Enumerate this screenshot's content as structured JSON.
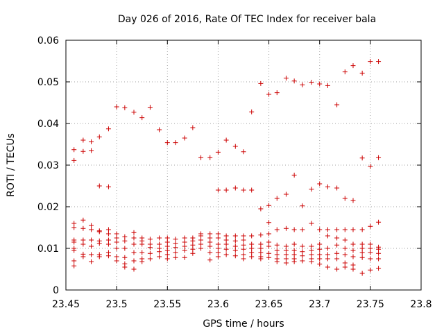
{
  "chart_data": {
    "type": "scatter",
    "title": "Day 026 of 2016, Rate Of TEC Index for receiver bala",
    "xlabel": "GPS time / hours",
    "ylabel": "ROTI / TECUs",
    "xlim": [
      23.45,
      23.8
    ],
    "ylim": [
      0,
      0.06
    ],
    "x_ticks": [
      "23.45",
      "23.5",
      "23.55",
      "23.6",
      "23.65",
      "23.7",
      "23.75",
      "23.8"
    ],
    "y_ticks": [
      "0",
      "0.01",
      "0.02",
      "0.03",
      "0.04",
      "0.05",
      "0.06"
    ],
    "grid": true,
    "marker": "+",
    "color": "#cc0000",
    "points": [
      [
        23.458,
        0.0337
      ],
      [
        23.458,
        0.0311
      ],
      [
        23.467,
        0.036
      ],
      [
        23.467,
        0.0333
      ],
      [
        23.475,
        0.0356
      ],
      [
        23.475,
        0.0335
      ],
      [
        23.483,
        0.0368
      ],
      [
        23.483,
        0.025
      ],
      [
        23.492,
        0.0387
      ],
      [
        23.492,
        0.0248
      ],
      [
        23.5,
        0.044
      ],
      [
        23.508,
        0.0438
      ],
      [
        23.517,
        0.0427
      ],
      [
        23.525,
        0.0414
      ],
      [
        23.533,
        0.0439
      ],
      [
        23.542,
        0.0385
      ],
      [
        23.55,
        0.0354
      ],
      [
        23.558,
        0.0354
      ],
      [
        23.567,
        0.0365
      ],
      [
        23.575,
        0.039
      ],
      [
        23.583,
        0.0318
      ],
      [
        23.592,
        0.0318
      ],
      [
        23.6,
        0.0331
      ],
      [
        23.6,
        0.024
      ],
      [
        23.608,
        0.036
      ],
      [
        23.608,
        0.024
      ],
      [
        23.617,
        0.0345
      ],
      [
        23.617,
        0.0245
      ],
      [
        23.625,
        0.0332
      ],
      [
        23.625,
        0.024
      ],
      [
        23.633,
        0.0428
      ],
      [
        23.633,
        0.024
      ],
      [
        23.642,
        0.0496
      ],
      [
        23.642,
        0.0195
      ],
      [
        23.65,
        0.047
      ],
      [
        23.65,
        0.0203
      ],
      [
        23.658,
        0.0474
      ],
      [
        23.658,
        0.022
      ],
      [
        23.667,
        0.0509
      ],
      [
        23.667,
        0.023
      ],
      [
        23.675,
        0.0502
      ],
      [
        23.675,
        0.0276
      ],
      [
        23.683,
        0.0493
      ],
      [
        23.683,
        0.0202
      ],
      [
        23.692,
        0.0499
      ],
      [
        23.692,
        0.0242
      ],
      [
        23.7,
        0.0495
      ],
      [
        23.7,
        0.0255
      ],
      [
        23.708,
        0.0491
      ],
      [
        23.708,
        0.0248
      ],
      [
        23.717,
        0.0445
      ],
      [
        23.717,
        0.0245
      ],
      [
        23.725,
        0.0524
      ],
      [
        23.725,
        0.022
      ],
      [
        23.733,
        0.0539
      ],
      [
        23.733,
        0.0215
      ],
      [
        23.742,
        0.0521
      ],
      [
        23.742,
        0.0317
      ],
      [
        23.75,
        0.0549
      ],
      [
        23.75,
        0.0297
      ],
      [
        23.758,
        0.0549
      ],
      [
        23.758,
        0.0318
      ],
      [
        23.458,
        0.016
      ],
      [
        23.458,
        0.015
      ],
      [
        23.458,
        0.012
      ],
      [
        23.458,
        0.0115
      ],
      [
        23.458,
        0.01
      ],
      [
        23.458,
        0.0095
      ],
      [
        23.458,
        0.007
      ],
      [
        23.458,
        0.0058
      ],
      [
        23.467,
        0.0168
      ],
      [
        23.467,
        0.0148
      ],
      [
        23.467,
        0.012
      ],
      [
        23.467,
        0.011
      ],
      [
        23.467,
        0.0086
      ],
      [
        23.467,
        0.008
      ],
      [
        23.475,
        0.0155
      ],
      [
        23.475,
        0.0145
      ],
      [
        23.475,
        0.012
      ],
      [
        23.475,
        0.0105
      ],
      [
        23.475,
        0.0085
      ],
      [
        23.475,
        0.0068
      ],
      [
        23.483,
        0.0142
      ],
      [
        23.483,
        0.014
      ],
      [
        23.483,
        0.0118
      ],
      [
        23.483,
        0.0112
      ],
      [
        23.483,
        0.0085
      ],
      [
        23.483,
        0.008
      ],
      [
        23.492,
        0.0145
      ],
      [
        23.492,
        0.0135
      ],
      [
        23.492,
        0.012
      ],
      [
        23.492,
        0.011
      ],
      [
        23.492,
        0.009
      ],
      [
        23.492,
        0.0082
      ],
      [
        23.5,
        0.0135
      ],
      [
        23.5,
        0.0125
      ],
      [
        23.5,
        0.0115
      ],
      [
        23.5,
        0.01
      ],
      [
        23.5,
        0.008
      ],
      [
        23.5,
        0.007
      ],
      [
        23.508,
        0.0128
      ],
      [
        23.508,
        0.0118
      ],
      [
        23.508,
        0.01
      ],
      [
        23.508,
        0.0078
      ],
      [
        23.508,
        0.0063
      ],
      [
        23.508,
        0.0055
      ],
      [
        23.517,
        0.0138
      ],
      [
        23.517,
        0.0125
      ],
      [
        23.517,
        0.011
      ],
      [
        23.517,
        0.009
      ],
      [
        23.517,
        0.007
      ],
      [
        23.517,
        0.005
      ],
      [
        23.525,
        0.0125
      ],
      [
        23.525,
        0.0118
      ],
      [
        23.525,
        0.011
      ],
      [
        23.525,
        0.009
      ],
      [
        23.525,
        0.0075
      ],
      [
        23.525,
        0.0068
      ],
      [
        23.533,
        0.0122
      ],
      [
        23.533,
        0.011
      ],
      [
        23.533,
        0.0102
      ],
      [
        23.533,
        0.0088
      ],
      [
        23.533,
        0.0075
      ],
      [
        23.542,
        0.0125
      ],
      [
        23.542,
        0.011
      ],
      [
        23.542,
        0.01
      ],
      [
        23.542,
        0.0092
      ],
      [
        23.542,
        0.008
      ],
      [
        23.55,
        0.0125
      ],
      [
        23.55,
        0.0115
      ],
      [
        23.55,
        0.0105
      ],
      [
        23.55,
        0.0095
      ],
      [
        23.55,
        0.0085
      ],
      [
        23.55,
        0.0075
      ],
      [
        23.558,
        0.0122
      ],
      [
        23.558,
        0.0112
      ],
      [
        23.558,
        0.0102
      ],
      [
        23.558,
        0.009
      ],
      [
        23.558,
        0.0078
      ],
      [
        23.567,
        0.0125
      ],
      [
        23.567,
        0.0115
      ],
      [
        23.567,
        0.0105
      ],
      [
        23.567,
        0.0095
      ],
      [
        23.567,
        0.0078
      ],
      [
        23.575,
        0.0125
      ],
      [
        23.575,
        0.0118
      ],
      [
        23.575,
        0.0108
      ],
      [
        23.575,
        0.0098
      ],
      [
        23.575,
        0.0088
      ],
      [
        23.583,
        0.0135
      ],
      [
        23.583,
        0.013
      ],
      [
        23.583,
        0.012
      ],
      [
        23.583,
        0.011
      ],
      [
        23.583,
        0.01
      ],
      [
        23.592,
        0.0135
      ],
      [
        23.592,
        0.0125
      ],
      [
        23.592,
        0.0115
      ],
      [
        23.592,
        0.0105
      ],
      [
        23.592,
        0.009
      ],
      [
        23.592,
        0.0072
      ],
      [
        23.6,
        0.0135
      ],
      [
        23.6,
        0.0125
      ],
      [
        23.6,
        0.011
      ],
      [
        23.6,
        0.01
      ],
      [
        23.6,
        0.009
      ],
      [
        23.6,
        0.008
      ],
      [
        23.608,
        0.013
      ],
      [
        23.608,
        0.012
      ],
      [
        23.608,
        0.011
      ],
      [
        23.608,
        0.0098
      ],
      [
        23.608,
        0.0085
      ],
      [
        23.617,
        0.013
      ],
      [
        23.617,
        0.0118
      ],
      [
        23.617,
        0.0105
      ],
      [
        23.617,
        0.0095
      ],
      [
        23.617,
        0.0082
      ],
      [
        23.625,
        0.013
      ],
      [
        23.625,
        0.012
      ],
      [
        23.625,
        0.0108
      ],
      [
        23.625,
        0.0098
      ],
      [
        23.625,
        0.0085
      ],
      [
        23.625,
        0.0075
      ],
      [
        23.633,
        0.013
      ],
      [
        23.633,
        0.011
      ],
      [
        23.633,
        0.01
      ],
      [
        23.633,
        0.009
      ],
      [
        23.633,
        0.008
      ],
      [
        23.642,
        0.0132
      ],
      [
        23.642,
        0.011
      ],
      [
        23.642,
        0.01
      ],
      [
        23.642,
        0.009
      ],
      [
        23.642,
        0.008
      ],
      [
        23.642,
        0.0075
      ],
      [
        23.65,
        0.0162
      ],
      [
        23.65,
        0.0135
      ],
      [
        23.65,
        0.0115
      ],
      [
        23.65,
        0.0105
      ],
      [
        23.65,
        0.0088
      ],
      [
        23.65,
        0.0078
      ],
      [
        23.658,
        0.0145
      ],
      [
        23.658,
        0.0108
      ],
      [
        23.658,
        0.0095
      ],
      [
        23.658,
        0.0085
      ],
      [
        23.658,
        0.0075
      ],
      [
        23.658,
        0.0068
      ],
      [
        23.667,
        0.0148
      ],
      [
        23.667,
        0.0105
      ],
      [
        23.667,
        0.0095
      ],
      [
        23.667,
        0.0085
      ],
      [
        23.667,
        0.0075
      ],
      [
        23.667,
        0.0065
      ],
      [
        23.675,
        0.0145
      ],
      [
        23.675,
        0.011
      ],
      [
        23.675,
        0.0095
      ],
      [
        23.675,
        0.0085
      ],
      [
        23.675,
        0.0075
      ],
      [
        23.675,
        0.0068
      ],
      [
        23.683,
        0.0145
      ],
      [
        23.683,
        0.0105
      ],
      [
        23.683,
        0.0092
      ],
      [
        23.683,
        0.0082
      ],
      [
        23.683,
        0.007
      ],
      [
        23.692,
        0.016
      ],
      [
        23.692,
        0.0105
      ],
      [
        23.692,
        0.0095
      ],
      [
        23.692,
        0.0085
      ],
      [
        23.692,
        0.0075
      ],
      [
        23.692,
        0.0068
      ],
      [
        23.7,
        0.0145
      ],
      [
        23.7,
        0.011
      ],
      [
        23.7,
        0.0098
      ],
      [
        23.7,
        0.0085
      ],
      [
        23.7,
        0.0075
      ],
      [
        23.7,
        0.0062
      ],
      [
        23.708,
        0.0145
      ],
      [
        23.708,
        0.013
      ],
      [
        23.708,
        0.01
      ],
      [
        23.708,
        0.0085
      ],
      [
        23.708,
        0.0075
      ],
      [
        23.708,
        0.0055
      ],
      [
        23.717,
        0.0145
      ],
      [
        23.717,
        0.0125
      ],
      [
        23.717,
        0.0108
      ],
      [
        23.717,
        0.0088
      ],
      [
        23.717,
        0.0075
      ],
      [
        23.717,
        0.005
      ],
      [
        23.725,
        0.0145
      ],
      [
        23.725,
        0.012
      ],
      [
        23.725,
        0.01
      ],
      [
        23.725,
        0.0085
      ],
      [
        23.725,
        0.0065
      ],
      [
        23.725,
        0.0055
      ],
      [
        23.733,
        0.0145
      ],
      [
        23.733,
        0.011
      ],
      [
        23.733,
        0.0095
      ],
      [
        23.733,
        0.008
      ],
      [
        23.733,
        0.006
      ],
      [
        23.733,
        0.005
      ],
      [
        23.742,
        0.0145
      ],
      [
        23.742,
        0.011
      ],
      [
        23.742,
        0.01
      ],
      [
        23.742,
        0.009
      ],
      [
        23.742,
        0.0078
      ],
      [
        23.742,
        0.004
      ],
      [
        23.75,
        0.0153
      ],
      [
        23.75,
        0.011
      ],
      [
        23.75,
        0.01
      ],
      [
        23.75,
        0.009
      ],
      [
        23.75,
        0.0075
      ],
      [
        23.75,
        0.0048
      ],
      [
        23.758,
        0.0163
      ],
      [
        23.758,
        0.0103
      ],
      [
        23.758,
        0.0098
      ],
      [
        23.758,
        0.0088
      ],
      [
        23.758,
        0.0075
      ],
      [
        23.758,
        0.0052
      ]
    ]
  }
}
